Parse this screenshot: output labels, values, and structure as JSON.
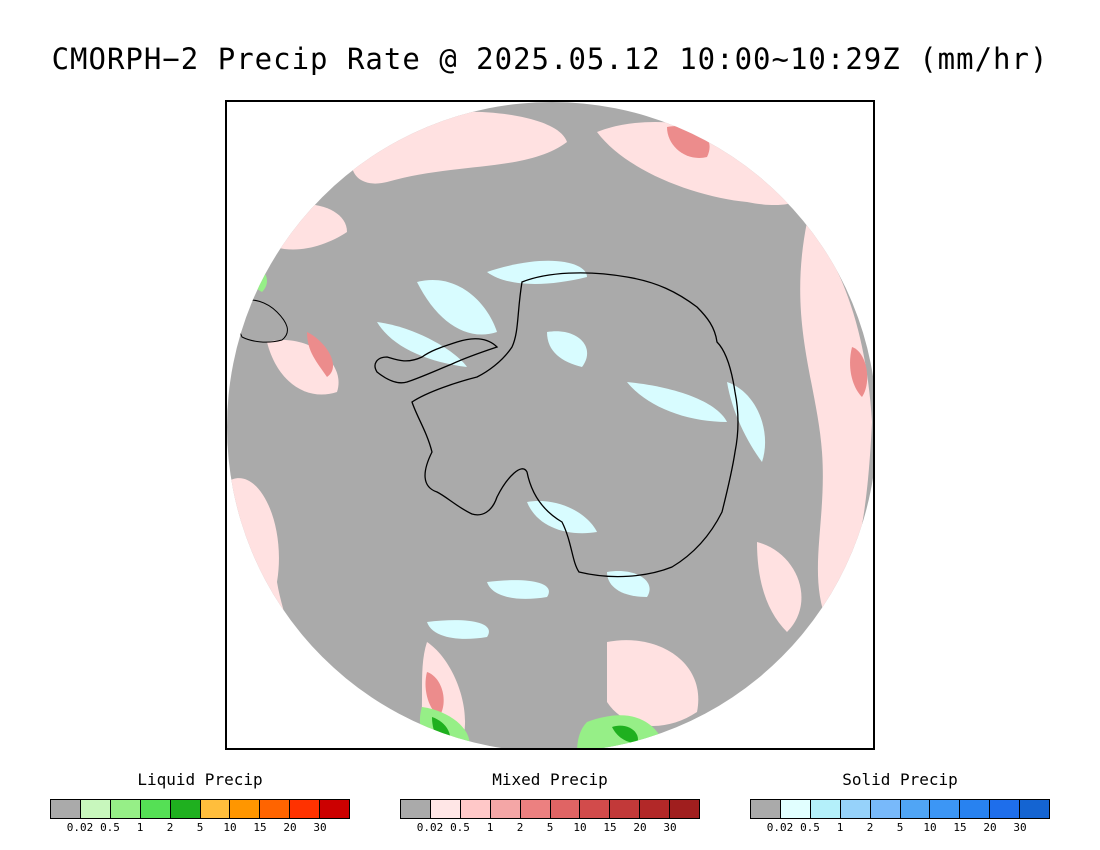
{
  "title": "CMORPH−2 Precip Rate @ 2025.05.12 10:00~10:29Z (mm/hr)",
  "map": {
    "projection": "south-polar-stereographic",
    "background_color": "#aaaaaa",
    "coastline_color": "#000000",
    "no_precip_color": "#aaaaaa"
  },
  "legends": [
    {
      "key": "liquid",
      "label": "Liquid Precip",
      "colors": [
        "#aaaaaa",
        "#c8f7bd",
        "#96ef87",
        "#55e055",
        "#1fb01f",
        "#ffbe3c",
        "#ff9600",
        "#ff6400",
        "#ff3200",
        "#cc0000"
      ],
      "ticks": [
        "0.02",
        "0.5",
        "1",
        "2",
        "5",
        "10",
        "15",
        "20",
        "30"
      ]
    },
    {
      "key": "mixed",
      "label": "Mixed Precip",
      "colors": [
        "#aaaaaa",
        "#ffe6e6",
        "#ffc8c8",
        "#f4a6a6",
        "#ec8080",
        "#e06464",
        "#d24b4b",
        "#c23939",
        "#b22828",
        "#a01e1e"
      ],
      "ticks": [
        "0.02",
        "0.5",
        "1",
        "2",
        "5",
        "10",
        "15",
        "20",
        "30"
      ]
    },
    {
      "key": "solid",
      "label": "Solid Precip",
      "colors": [
        "#aaaaaa",
        "#e1ffff",
        "#b4f0fa",
        "#96d2fa",
        "#78b9fa",
        "#50a5f5",
        "#3c96f5",
        "#2882f0",
        "#1e6eeb",
        "#1464d2"
      ],
      "ticks": [
        "0.02",
        "0.5",
        "1",
        "2",
        "5",
        "10",
        "15",
        "20",
        "30"
      ]
    }
  ]
}
